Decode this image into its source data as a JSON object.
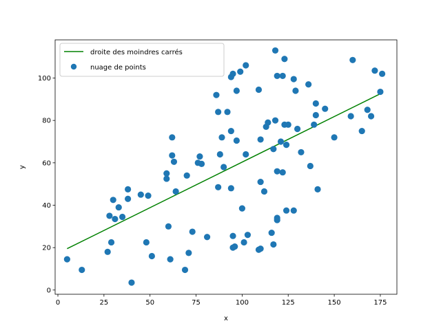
{
  "chart_data": {
    "type": "scatter",
    "xlabel": "x",
    "ylabel": "y",
    "xlim": [
      -1.5,
      184
    ],
    "ylim": [
      -2,
      118
    ],
    "xticks": [
      0,
      25,
      50,
      75,
      100,
      125,
      150,
      175
    ],
    "yticks": [
      0,
      20,
      40,
      60,
      80,
      100
    ],
    "grid": false,
    "legend": {
      "placement": "top-left",
      "entries": [
        {
          "label": "droite des moindres carrés",
          "kind": "line"
        },
        {
          "label": "nuage de points",
          "kind": "marker"
        }
      ]
    },
    "colors": {
      "points": "#1f77b4",
      "line": "#008000"
    },
    "series": [
      {
        "name": "droite des moindres carrés",
        "kind": "line",
        "points": [
          [
            5,
            19.5
          ],
          [
            176,
            93
          ]
        ]
      },
      {
        "name": "nuage de points",
        "kind": "scatter",
        "points": [
          [
            5,
            14.5
          ],
          [
            13,
            9.5
          ],
          [
            27,
            18
          ],
          [
            28,
            35
          ],
          [
            29,
            22.5
          ],
          [
            30,
            42.5
          ],
          [
            31,
            33.5
          ],
          [
            33,
            39
          ],
          [
            35,
            34.5
          ],
          [
            38,
            47.5
          ],
          [
            38,
            43
          ],
          [
            40,
            3.5
          ],
          [
            45,
            45
          ],
          [
            48,
            22.5
          ],
          [
            49,
            44.5
          ],
          [
            51,
            16
          ],
          [
            59,
            52.5
          ],
          [
            59,
            55
          ],
          [
            60,
            30
          ],
          [
            61,
            14.5
          ],
          [
            62,
            63.5
          ],
          [
            62,
            72
          ],
          [
            63,
            60.5
          ],
          [
            64,
            46.5
          ],
          [
            69,
            9.5
          ],
          [
            70,
            54
          ],
          [
            71,
            17.5
          ],
          [
            73,
            27.5
          ],
          [
            76,
            60
          ],
          [
            77,
            63
          ],
          [
            78,
            59.5
          ],
          [
            81,
            25
          ],
          [
            86,
            92
          ],
          [
            87,
            84
          ],
          [
            87,
            48.5
          ],
          [
            88,
            64
          ],
          [
            89,
            72
          ],
          [
            90,
            58
          ],
          [
            92,
            84
          ],
          [
            94,
            75
          ],
          [
            94,
            48
          ],
          [
            94,
            100.5
          ],
          [
            95,
            102
          ],
          [
            95,
            20
          ],
          [
            96,
            20.5
          ],
          [
            95,
            25.5
          ],
          [
            97,
            70.5
          ],
          [
            97,
            94
          ],
          [
            99,
            103
          ],
          [
            100,
            38.5
          ],
          [
            101,
            22.5
          ],
          [
            102,
            106
          ],
          [
            102,
            64
          ],
          [
            103,
            26
          ],
          [
            109,
            94.5
          ],
          [
            109,
            19
          ],
          [
            110,
            71
          ],
          [
            110,
            19.5
          ],
          [
            110,
            51
          ],
          [
            112,
            46.5
          ],
          [
            113,
            77
          ],
          [
            114,
            79
          ],
          [
            116,
            27
          ],
          [
            117,
            66.5
          ],
          [
            117,
            21.5
          ],
          [
            118,
            113
          ],
          [
            118,
            80
          ],
          [
            119,
            56
          ],
          [
            119,
            34
          ],
          [
            119,
            33
          ],
          [
            119,
            101
          ],
          [
            121,
            70
          ],
          [
            122,
            101
          ],
          [
            122,
            55.5
          ],
          [
            123,
            78
          ],
          [
            123,
            109
          ],
          [
            124,
            37.5
          ],
          [
            124,
            68.5
          ],
          [
            125,
            78
          ],
          [
            128,
            99.5
          ],
          [
            128,
            37.5
          ],
          [
            129,
            94
          ],
          [
            130,
            76
          ],
          [
            132,
            65
          ],
          [
            136,
            97
          ],
          [
            137,
            58.5
          ],
          [
            139,
            78
          ],
          [
            140,
            88
          ],
          [
            140,
            82.5
          ],
          [
            141,
            47.5
          ],
          [
            145,
            85.5
          ],
          [
            150,
            72
          ],
          [
            159,
            82
          ],
          [
            160,
            108.5
          ],
          [
            165,
            75
          ],
          [
            168,
            85
          ],
          [
            170,
            82
          ],
          [
            172,
            103.5
          ],
          [
            175,
            93.5
          ],
          [
            176,
            102
          ]
        ]
      }
    ]
  }
}
